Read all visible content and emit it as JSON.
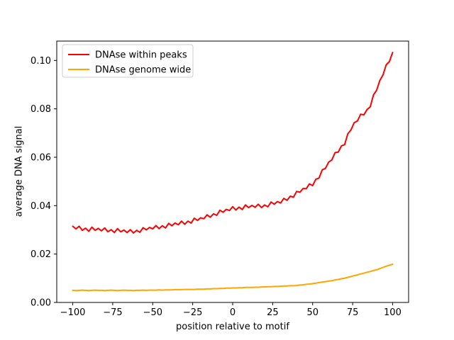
{
  "figure": {
    "background": "#ffffff",
    "axes_background": "#ffffff",
    "spine_color": "#000000",
    "text_color": "#000000"
  },
  "chart_data": {
    "type": "line",
    "title": "",
    "xlabel": "position relative to motif",
    "ylabel": "average DNA signal",
    "xlim": [
      -110,
      110
    ],
    "ylim": [
      0,
      0.108
    ],
    "grid": false,
    "xticks": [
      -100,
      -75,
      -50,
      -25,
      0,
      25,
      50,
      75,
      100
    ],
    "xtick_labels": [
      "−100",
      "−75",
      "−50",
      "−25",
      "0",
      "25",
      "50",
      "75",
      "100"
    ],
    "yticks": [
      0.0,
      0.02,
      0.04,
      0.06,
      0.08,
      0.1
    ],
    "ytick_labels": [
      "0.00",
      "0.02",
      "0.04",
      "0.06",
      "0.08",
      "0.10"
    ],
    "legend": {
      "position": "upper left",
      "frame": true,
      "frame_color": "#cccccc",
      "entries": [
        "DNAse within peaks",
        "DNAse genome wide"
      ]
    },
    "x": [
      -100,
      -98,
      -96,
      -94,
      -92,
      -90,
      -88,
      -86,
      -84,
      -82,
      -80,
      -78,
      -76,
      -74,
      -72,
      -70,
      -68,
      -66,
      -64,
      -62,
      -60,
      -58,
      -56,
      -54,
      -52,
      -50,
      -48,
      -46,
      -44,
      -42,
      -40,
      -38,
      -36,
      -34,
      -32,
      -30,
      -28,
      -26,
      -24,
      -22,
      -20,
      -18,
      -16,
      -14,
      -12,
      -10,
      -8,
      -6,
      -4,
      -2,
      0,
      2,
      4,
      6,
      8,
      10,
      12,
      14,
      16,
      18,
      20,
      22,
      24,
      26,
      28,
      30,
      32,
      34,
      36,
      38,
      40,
      42,
      44,
      46,
      48,
      50,
      52,
      54,
      56,
      58,
      60,
      62,
      64,
      66,
      68,
      70,
      72,
      74,
      76,
      78,
      80,
      82,
      84,
      86,
      88,
      90,
      92,
      94,
      96,
      98,
      100
    ],
    "series": [
      {
        "name": "DNAse within peaks",
        "color": "#ff0000",
        "values": [
          0.0315,
          0.0304,
          0.0315,
          0.0298,
          0.0307,
          0.0294,
          0.0311,
          0.0298,
          0.0306,
          0.0296,
          0.0308,
          0.0292,
          0.0301,
          0.0289,
          0.0305,
          0.0292,
          0.0299,
          0.0289,
          0.0301,
          0.0287,
          0.0298,
          0.029,
          0.0309,
          0.03,
          0.031,
          0.0304,
          0.0318,
          0.0305,
          0.0317,
          0.0308,
          0.0327,
          0.0317,
          0.0328,
          0.0321,
          0.0336,
          0.0323,
          0.0336,
          0.0328,
          0.0348,
          0.0339,
          0.035,
          0.0346,
          0.0362,
          0.0352,
          0.0366,
          0.036,
          0.0381,
          0.0373,
          0.0385,
          0.038,
          0.0396,
          0.0382,
          0.0394,
          0.0384,
          0.0403,
          0.0392,
          0.0401,
          0.0393,
          0.0406,
          0.0392,
          0.0403,
          0.0395,
          0.0415,
          0.0406,
          0.0417,
          0.0411,
          0.043,
          0.0422,
          0.0439,
          0.0435,
          0.0459,
          0.0455,
          0.0471,
          0.047,
          0.049,
          0.0483,
          0.0509,
          0.0514,
          0.0548,
          0.0554,
          0.058,
          0.0589,
          0.0619,
          0.0621,
          0.0647,
          0.0652,
          0.0697,
          0.0713,
          0.0743,
          0.075,
          0.0778,
          0.0775,
          0.0797,
          0.0808,
          0.0857,
          0.0877,
          0.0917,
          0.094,
          0.0982,
          0.0995,
          0.1033
        ]
      },
      {
        "name": "DNAse genome wide",
        "color": "#ffa500",
        "values": [
          0.005,
          0.0049,
          0.005,
          0.0051,
          0.005,
          0.0049,
          0.005,
          0.0051,
          0.005,
          0.005,
          0.0049,
          0.005,
          0.0051,
          0.005,
          0.0049,
          0.005,
          0.0051,
          0.005,
          0.005,
          0.0049,
          0.005,
          0.005,
          0.0051,
          0.005,
          0.0051,
          0.0051,
          0.0051,
          0.0052,
          0.0051,
          0.0052,
          0.0052,
          0.0052,
          0.0053,
          0.0053,
          0.0053,
          0.0054,
          0.0054,
          0.0054,
          0.0054,
          0.0055,
          0.0055,
          0.0055,
          0.0056,
          0.0056,
          0.0057,
          0.0057,
          0.0058,
          0.0058,
          0.0059,
          0.0059,
          0.006,
          0.006,
          0.0061,
          0.0061,
          0.0062,
          0.0062,
          0.0062,
          0.0063,
          0.0063,
          0.0064,
          0.0064,
          0.0065,
          0.0065,
          0.0066,
          0.0066,
          0.0067,
          0.0068,
          0.0068,
          0.0069,
          0.0069,
          0.007,
          0.0072,
          0.0073,
          0.0075,
          0.0076,
          0.0078,
          0.008,
          0.0082,
          0.0084,
          0.0086,
          0.0088,
          0.009,
          0.0093,
          0.0095,
          0.0098,
          0.01,
          0.0104,
          0.0107,
          0.0111,
          0.0114,
          0.0118,
          0.0121,
          0.0125,
          0.0128,
          0.0132,
          0.0135,
          0.014,
          0.0145,
          0.015,
          0.0154,
          0.0158
        ]
      }
    ]
  }
}
